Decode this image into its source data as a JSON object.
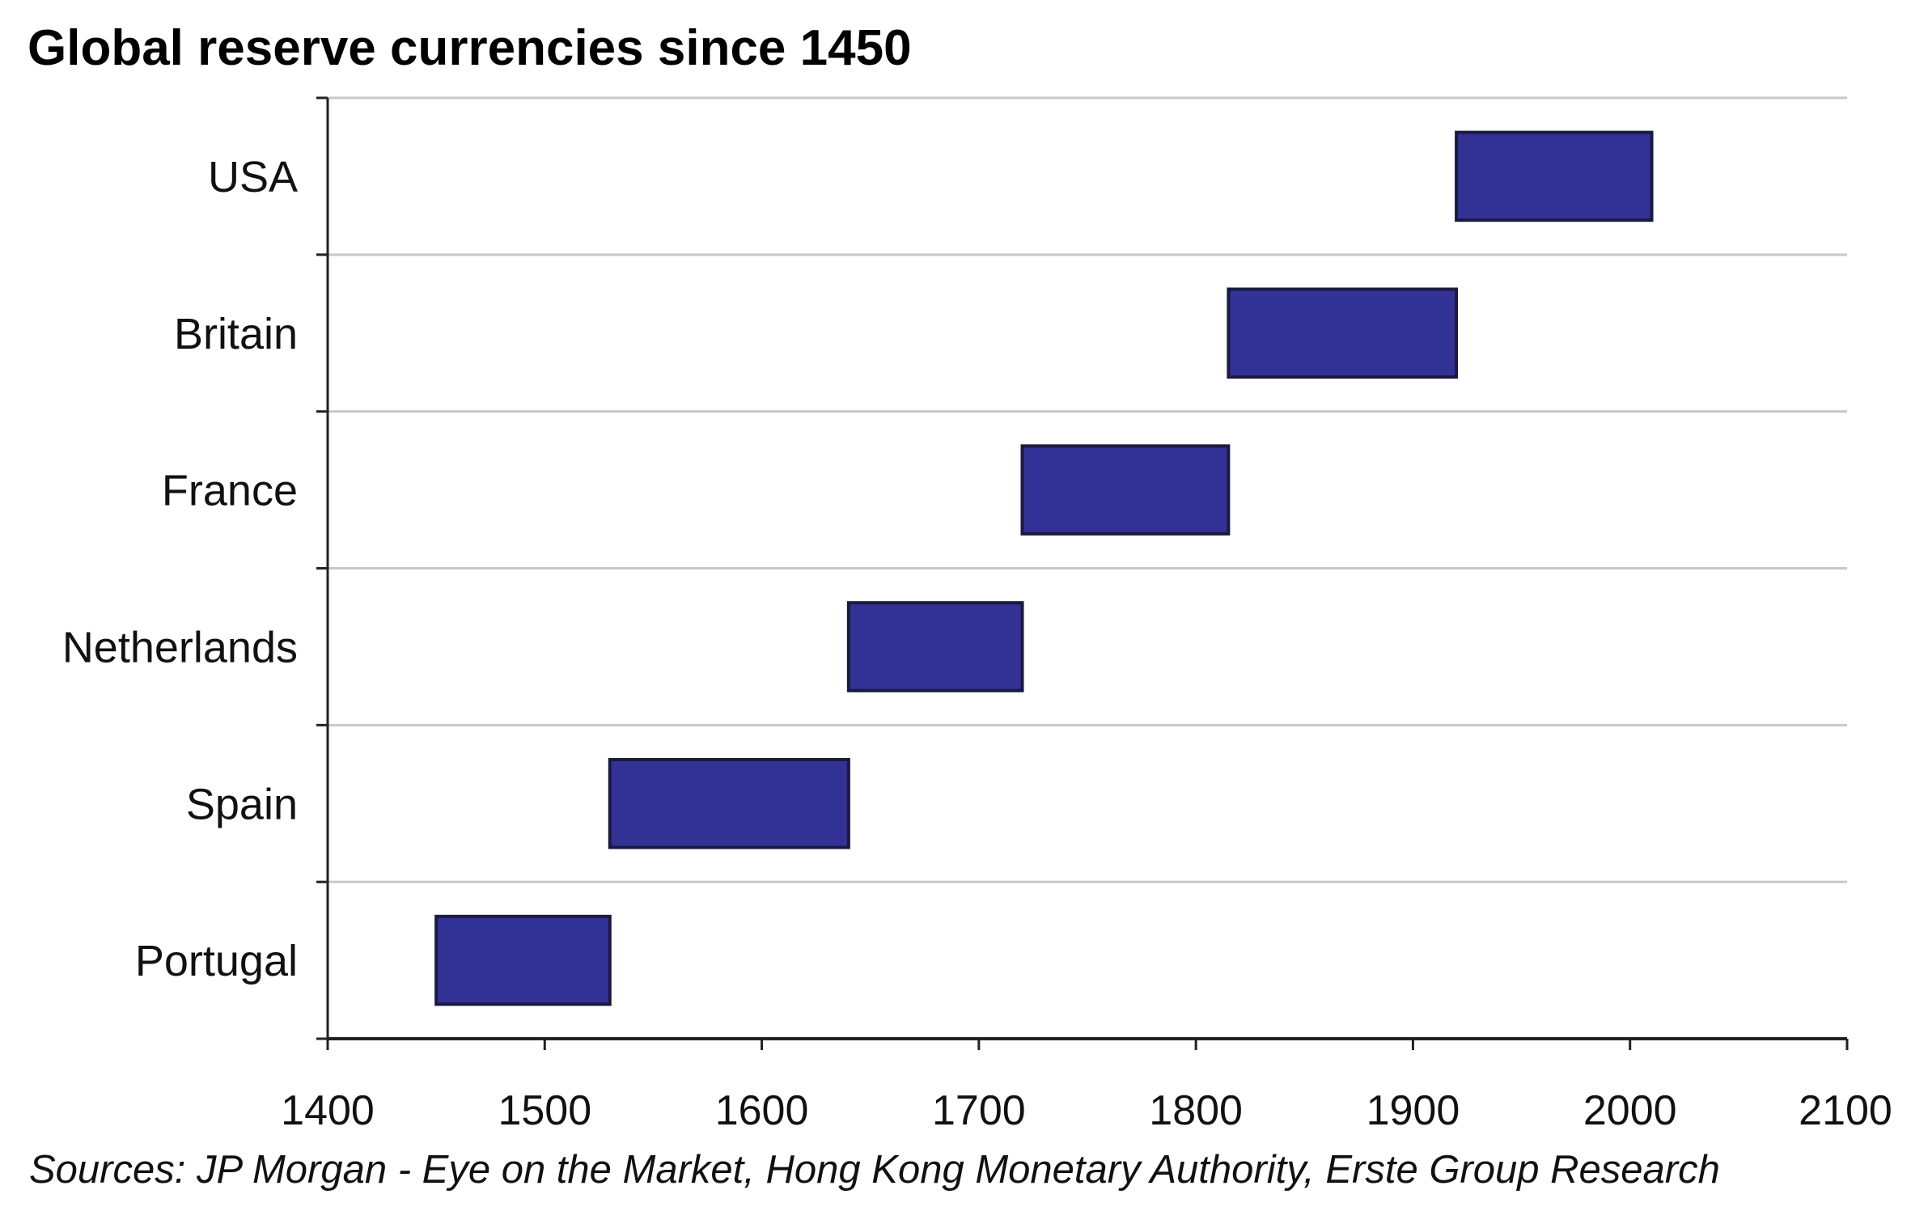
{
  "chart_data": {
    "type": "bar",
    "subtype": "floating-horizontal-bar",
    "title": "Global reserve currencies since 1450",
    "source": "Sources: JP Morgan - Eye on the Market, Hong Kong Monetary Authority, Erste Group Research",
    "categories": [
      "USA",
      "Britain",
      "France",
      "Netherlands",
      "Spain",
      "Portugal"
    ],
    "series": [
      {
        "values": [
          {
            "start": 1920,
            "end": 2010
          },
          {
            "start": 1815,
            "end": 1920
          },
          {
            "start": 1720,
            "end": 1815
          },
          {
            "start": 1640,
            "end": 1720
          },
          {
            "start": 1530,
            "end": 1640
          },
          {
            "start": 1450,
            "end": 1530
          }
        ]
      }
    ],
    "xlim": [
      1400,
      2100
    ],
    "xticks": [
      "1400",
      "1500",
      "1600",
      "1700",
      "1800",
      "1900",
      "2000",
      "2100"
    ],
    "grid": "horizontal",
    "colors": {
      "bar": "#323296",
      "bar_edge": "#1a1a40",
      "grid": "#c8c8c8",
      "axis": "#222222"
    }
  }
}
